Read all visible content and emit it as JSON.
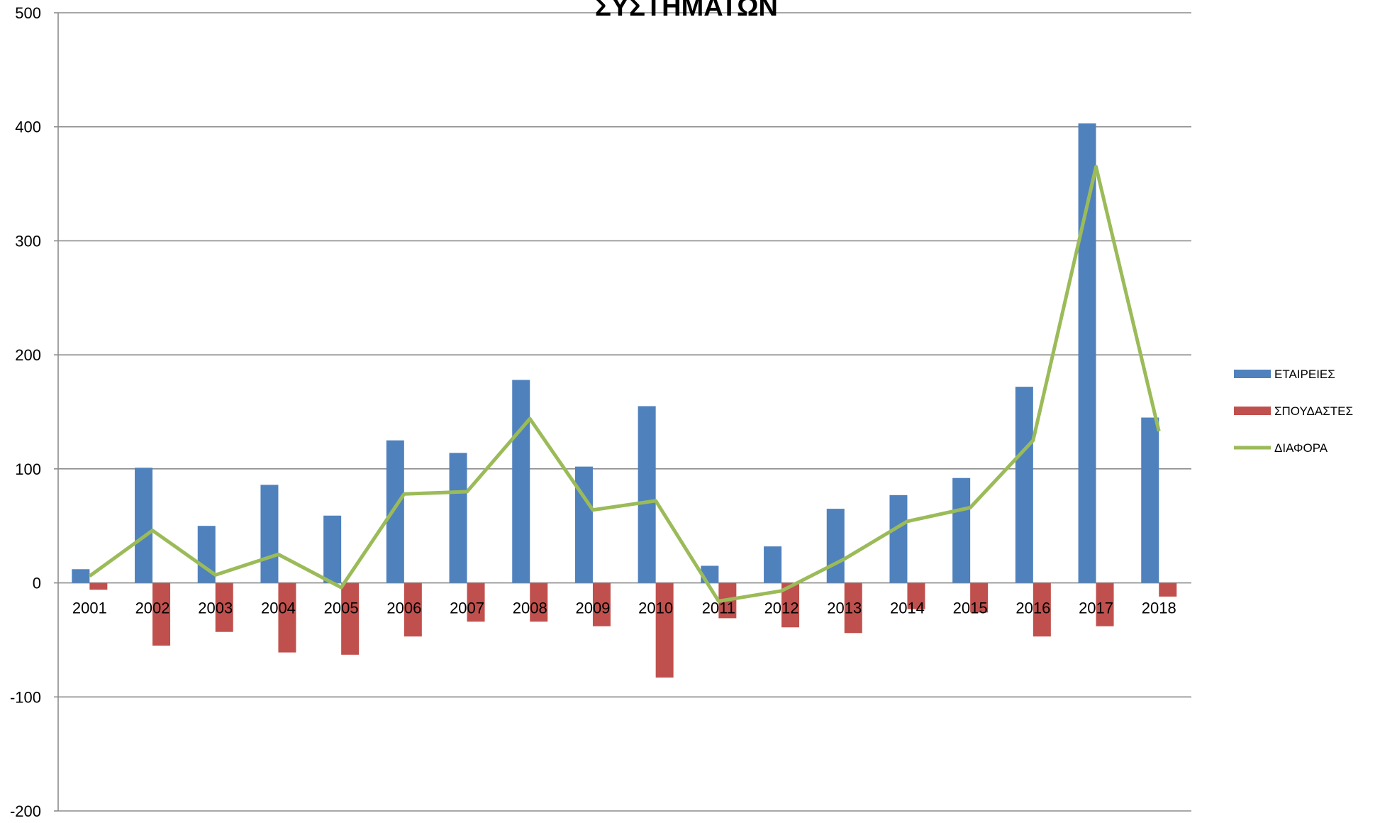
{
  "chart_data": {
    "type": "bar",
    "title": "ΣΥΣΤΗΜΑΤΩΝ",
    "categories": [
      "2001",
      "2002",
      "2003",
      "2004",
      "2005",
      "2006",
      "2007",
      "2008",
      "2009",
      "2010",
      "2011",
      "2012",
      "2013",
      "2014",
      "2015",
      "2016",
      "2017",
      "2018"
    ],
    "series": [
      {
        "name": "ΕΤΑΙΡΕΙΕΣ",
        "kind": "bar",
        "color": "#4f81bd",
        "values": [
          12,
          101,
          50,
          86,
          59,
          125,
          114,
          178,
          102,
          155,
          15,
          32,
          65,
          77,
          92,
          172,
          403,
          145
        ]
      },
      {
        "name": "ΣΠΟΥΔΑΣΤΕΣ",
        "kind": "bar",
        "color": "#c0504d",
        "values": [
          -6,
          -55,
          -43,
          -61,
          -63,
          -47,
          -34,
          -34,
          -38,
          -83,
          -31,
          -39,
          -44,
          -23,
          -26,
          -47,
          -38,
          -12
        ]
      },
      {
        "name": "ΔΙΑΦΟΡΑ",
        "kind": "line",
        "color": "#9bbb59",
        "values": [
          6,
          46,
          7,
          25,
          -4,
          78,
          80,
          144,
          64,
          72,
          -16,
          -7,
          21,
          54,
          66,
          125,
          365,
          133
        ]
      }
    ],
    "ylim": [
      -200,
      500
    ],
    "yticks": [
      500,
      400,
      300,
      200,
      100,
      0,
      -100,
      -200
    ],
    "grid": true,
    "legend_position": "right"
  }
}
